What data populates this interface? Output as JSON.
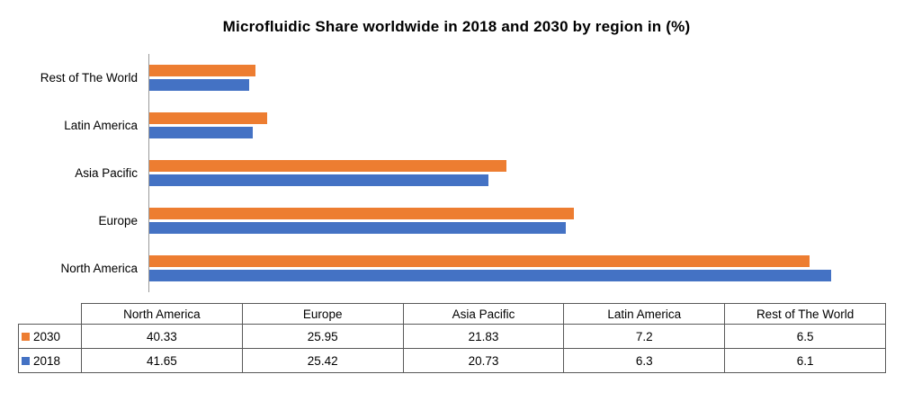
{
  "chart_data": {
    "type": "bar",
    "orientation": "horizontal",
    "title": "Microfluidic Share worldwide in 2018 and 2030 by region in (%)",
    "categories": [
      "North America",
      "Europe",
      "Asia Pacific",
      "Latin America",
      "Rest of The World"
    ],
    "category_axis_order_top_to_bottom": [
      "Rest of The World",
      "Latin America",
      "Asia Pacific",
      "Europe",
      "North America"
    ],
    "series": [
      {
        "name": "2030",
        "color": "#ED7D31",
        "values": [
          40.33,
          25.95,
          21.83,
          7.2,
          6.5
        ]
      },
      {
        "name": "2018",
        "color": "#4472C4",
        "values": [
          41.65,
          25.42,
          20.73,
          6.3,
          6.1
        ]
      }
    ],
    "xlabel": "",
    "ylabel": "",
    "xlim": [
      0,
      45
    ],
    "grid": false,
    "legend_position": "data-table-left"
  },
  "colors": {
    "bar_2030": "#ED7D31",
    "bar_2018": "#4472C4",
    "axis_line": "#9a9a9a",
    "table_border": "#595959",
    "text": "#000000",
    "background": "#ffffff"
  }
}
